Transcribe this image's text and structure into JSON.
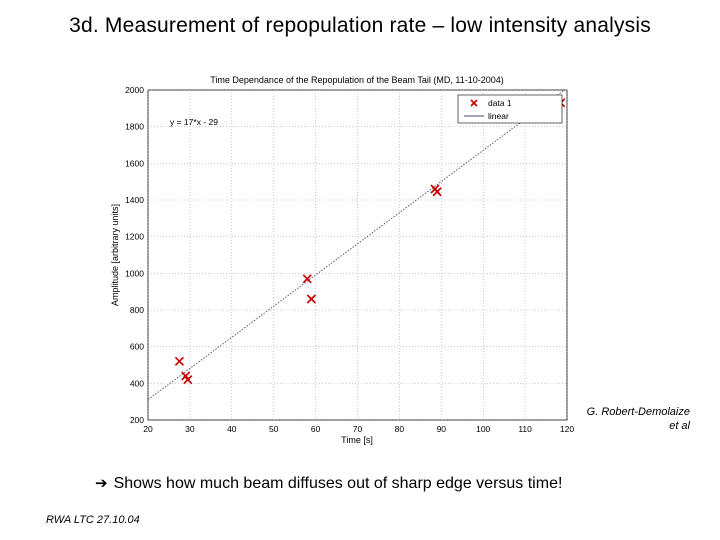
{
  "slide": {
    "title": "3d. Measurement of repopulation rate – low intensity analysis",
    "credit_line1": "G. Robert-Demolaize",
    "credit_line2": "et al",
    "caption_arrow": "➔",
    "caption": "Shows how much beam diffuses out of sharp edge versus time!",
    "footer": "RWA LTC 27.10.04"
  },
  "chart_data": {
    "type": "scatter",
    "title": "Time Dependance of the Repopulation of the Beam Tail (MD, 11-10-2004)",
    "xlabel": "Time [s]",
    "ylabel": "Amplitude [arbitrary units]",
    "xlim": [
      20,
      120
    ],
    "ylim": [
      200,
      2000
    ],
    "xticks": [
      20,
      30,
      40,
      50,
      60,
      70,
      80,
      90,
      100,
      110,
      120
    ],
    "yticks": [
      200,
      400,
      600,
      800,
      1000,
      1200,
      1400,
      1600,
      1800,
      2000
    ],
    "grid": true,
    "legend_position": "top-right",
    "annotation": "y = 17*x - 29",
    "series": [
      {
        "name": "data 1",
        "marker": "x",
        "color": "#cc0000",
        "x": [
          27.5,
          29,
          29.5,
          58,
          59,
          88.5,
          89,
          117.5,
          118.5
        ],
        "y": [
          520,
          440,
          420,
          970,
          860,
          1460,
          1445,
          1935,
          1930
        ]
      },
      {
        "name": "linear",
        "style": "dotted-line",
        "color": "#4a4a78",
        "slope": 17,
        "intercept": -29
      }
    ]
  }
}
